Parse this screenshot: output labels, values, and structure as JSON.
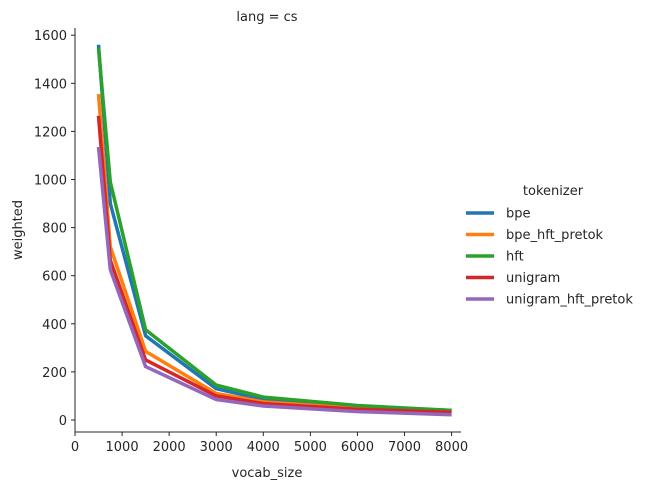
{
  "chart_data": {
    "type": "line",
    "title": "lang = cs",
    "xlabel": "vocab_size",
    "ylabel": "weighted",
    "xlim": [
      0,
      8200
    ],
    "ylim": [
      -50,
      1630
    ],
    "xticks": [
      0,
      1000,
      2000,
      3000,
      4000,
      5000,
      6000,
      7000,
      8000
    ],
    "yticks": [
      0,
      200,
      400,
      600,
      800,
      1000,
      1200,
      1400,
      1600
    ],
    "grid": false,
    "legend": {
      "title": "tokenizer",
      "placement": "right"
    },
    "x": [
      500,
      750,
      1500,
      3000,
      4000,
      6000,
      8000
    ],
    "series": [
      {
        "name": "bpe",
        "color": "#1f77b4",
        "values": [
          1560,
          900,
          350,
          130,
          85,
          55,
          40
        ]
      },
      {
        "name": "bpe_hft_pretok",
        "color": "#ff7f0e",
        "values": [
          1355,
          720,
          285,
          110,
          75,
          48,
          35
        ]
      },
      {
        "name": "hft",
        "color": "#2ca02c",
        "values": [
          1545,
          990,
          375,
          145,
          95,
          60,
          40
        ]
      },
      {
        "name": "unigram",
        "color": "#d62728",
        "values": [
          1265,
          665,
          250,
          100,
          68,
          45,
          32
        ]
      },
      {
        "name": "unigram_hft_pretok",
        "color": "#9467bd",
        "values": [
          1135,
          625,
          222,
          85,
          58,
          35,
          22
        ]
      }
    ]
  }
}
